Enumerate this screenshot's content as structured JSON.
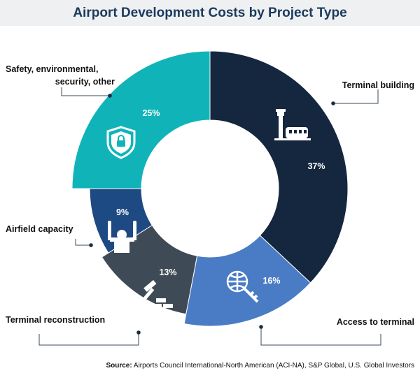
{
  "chart_data": {
    "type": "pie",
    "title": "Airport Development Costs by Project Type",
    "categories": [
      "Terminal building",
      "Access to terminal",
      "Terminal reconstruction",
      "Airfield capacity",
      "Safety, environmental, security, other"
    ],
    "values": [
      37,
      16,
      13,
      9,
      25
    ],
    "unit": "%",
    "value_labels": [
      "37%",
      "16%",
      "13%",
      "9%",
      "25%"
    ],
    "colors": [
      "#15263f",
      "#4a7cc5",
      "#3e4b57",
      "#1d4a82",
      "#10b4b8"
    ],
    "icons": [
      "control-tower-icon",
      "key-globe-icon",
      "hammer-bricks-icon",
      "marshaller-icon",
      "shield-lock-icon"
    ],
    "label_lines": {
      "terminal_building": "Terminal building",
      "access_to_terminal": "Access to terminal",
      "terminal_reconstruction": "Terminal reconstruction",
      "airfield_capacity": "Airfield capacity",
      "safety_line1": "Safety, environmental,",
      "safety_line2": "security, other"
    }
  },
  "source": {
    "label": "Source:",
    "text": " Airports Council International-North American (ACI-NA), S&P Global, U.S. Global Investors"
  }
}
